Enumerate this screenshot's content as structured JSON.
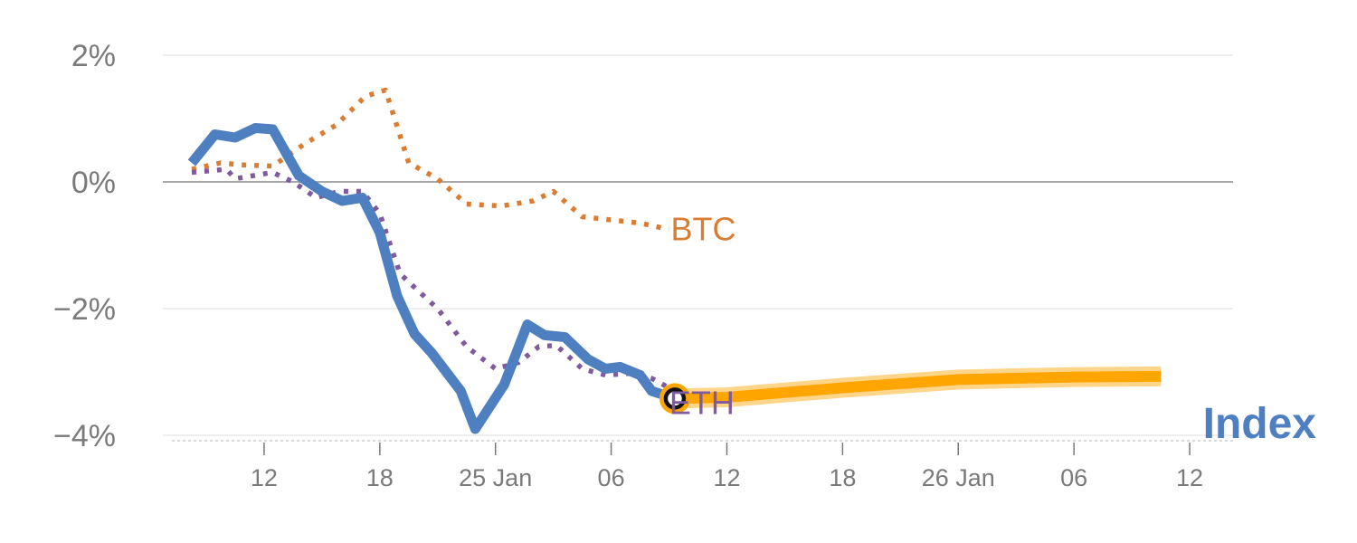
{
  "chart_data": {
    "type": "line",
    "title": "",
    "xlabel": "",
    "ylabel": "",
    "ylim": [
      -4,
      2
    ],
    "grid": true,
    "y_ticks": [
      {
        "value": 2,
        "label": "2%"
      },
      {
        "value": 0,
        "label": "0%"
      },
      {
        "value": -2,
        "label": "−2%"
      },
      {
        "value": -4,
        "label": "−4%"
      }
    ],
    "x_ticks": [
      {
        "x": 1,
        "label": "12"
      },
      {
        "x": 5,
        "label": "18"
      },
      {
        "x": 9,
        "label": "25 Jan"
      },
      {
        "x": 13,
        "label": "06"
      },
      {
        "x": 17,
        "label": "12"
      },
      {
        "x": 21,
        "label": "18"
      },
      {
        "x": 25,
        "label": "26 Jan"
      },
      {
        "x": 29,
        "label": "06"
      },
      {
        "x": 33,
        "label": "12"
      }
    ],
    "xlim": [
      -2.5,
      34.5
    ],
    "marker": {
      "x": 15.2,
      "y": -3.42
    },
    "series": [
      {
        "name": "Index",
        "style": "solid",
        "color": "#4e7fc1",
        "points": [
          [
            -1.5,
            0.3
          ],
          [
            -0.7,
            0.75
          ],
          [
            0,
            0.7
          ],
          [
            0.7,
            0.85
          ],
          [
            1.3,
            0.83
          ],
          [
            2.2,
            0.1
          ],
          [
            3,
            -0.15
          ],
          [
            3.7,
            -0.3
          ],
          [
            4.4,
            -0.25
          ],
          [
            5,
            -0.8
          ],
          [
            5.6,
            -1.8
          ],
          [
            6.2,
            -2.4
          ],
          [
            6.8,
            -2.7
          ],
          [
            7.8,
            -3.3
          ],
          [
            8.3,
            -3.9
          ],
          [
            9.3,
            -3.2
          ],
          [
            10.1,
            -2.25
          ],
          [
            10.7,
            -2.42
          ],
          [
            11.4,
            -2.45
          ],
          [
            12.2,
            -2.8
          ],
          [
            12.8,
            -2.95
          ],
          [
            13.3,
            -2.92
          ],
          [
            14,
            -3.05
          ],
          [
            14.4,
            -3.3
          ],
          [
            15.2,
            -3.42
          ]
        ]
      },
      {
        "name": "Index forecast",
        "style": "forecast",
        "color": "#ffa500",
        "points": [
          [
            15.2,
            -3.42
          ],
          [
            17,
            -3.4
          ],
          [
            21,
            -3.25
          ],
          [
            25,
            -3.12
          ],
          [
            29,
            -3.08
          ],
          [
            32,
            -3.07
          ]
        ]
      },
      {
        "name": "BTC",
        "style": "dotted",
        "color": "#d97d34",
        "points": [
          [
            -1.5,
            0.2
          ],
          [
            -0.5,
            0.3
          ],
          [
            0.2,
            0.27
          ],
          [
            1.3,
            0.25
          ],
          [
            2.4,
            0.6
          ],
          [
            3.5,
            0.9
          ],
          [
            4.5,
            1.35
          ],
          [
            5.2,
            1.45
          ],
          [
            6,
            0.3
          ],
          [
            7,
            0.05
          ],
          [
            8,
            -0.35
          ],
          [
            9.2,
            -0.38
          ],
          [
            10.3,
            -0.3
          ],
          [
            11,
            -0.15
          ],
          [
            12,
            -0.55
          ],
          [
            13,
            -0.6
          ],
          [
            14,
            -0.65
          ],
          [
            15,
            -0.75
          ]
        ]
      },
      {
        "name": "ETH",
        "style": "dotted",
        "color": "#7f5a9e",
        "points": [
          [
            -1.5,
            0.15
          ],
          [
            -0.3,
            0.2
          ],
          [
            0,
            0.05
          ],
          [
            1.3,
            0.15
          ],
          [
            2,
            0.0
          ],
          [
            2.8,
            -0.25
          ],
          [
            3.6,
            -0.15
          ],
          [
            4.4,
            -0.15
          ],
          [
            5,
            -0.5
          ],
          [
            5.7,
            -1.45
          ],
          [
            6.4,
            -1.75
          ],
          [
            7,
            -2.0
          ],
          [
            8,
            -2.6
          ],
          [
            9,
            -2.95
          ],
          [
            9.8,
            -2.85
          ],
          [
            10.5,
            -2.6
          ],
          [
            11.1,
            -2.58
          ],
          [
            12,
            -2.95
          ],
          [
            12.8,
            -3.05
          ],
          [
            13.7,
            -3.02
          ],
          [
            14.4,
            -3.1
          ],
          [
            15,
            -3.25
          ]
        ]
      }
    ],
    "labels": {
      "btc": "BTC",
      "eth": "ETH",
      "index": "Index"
    }
  }
}
